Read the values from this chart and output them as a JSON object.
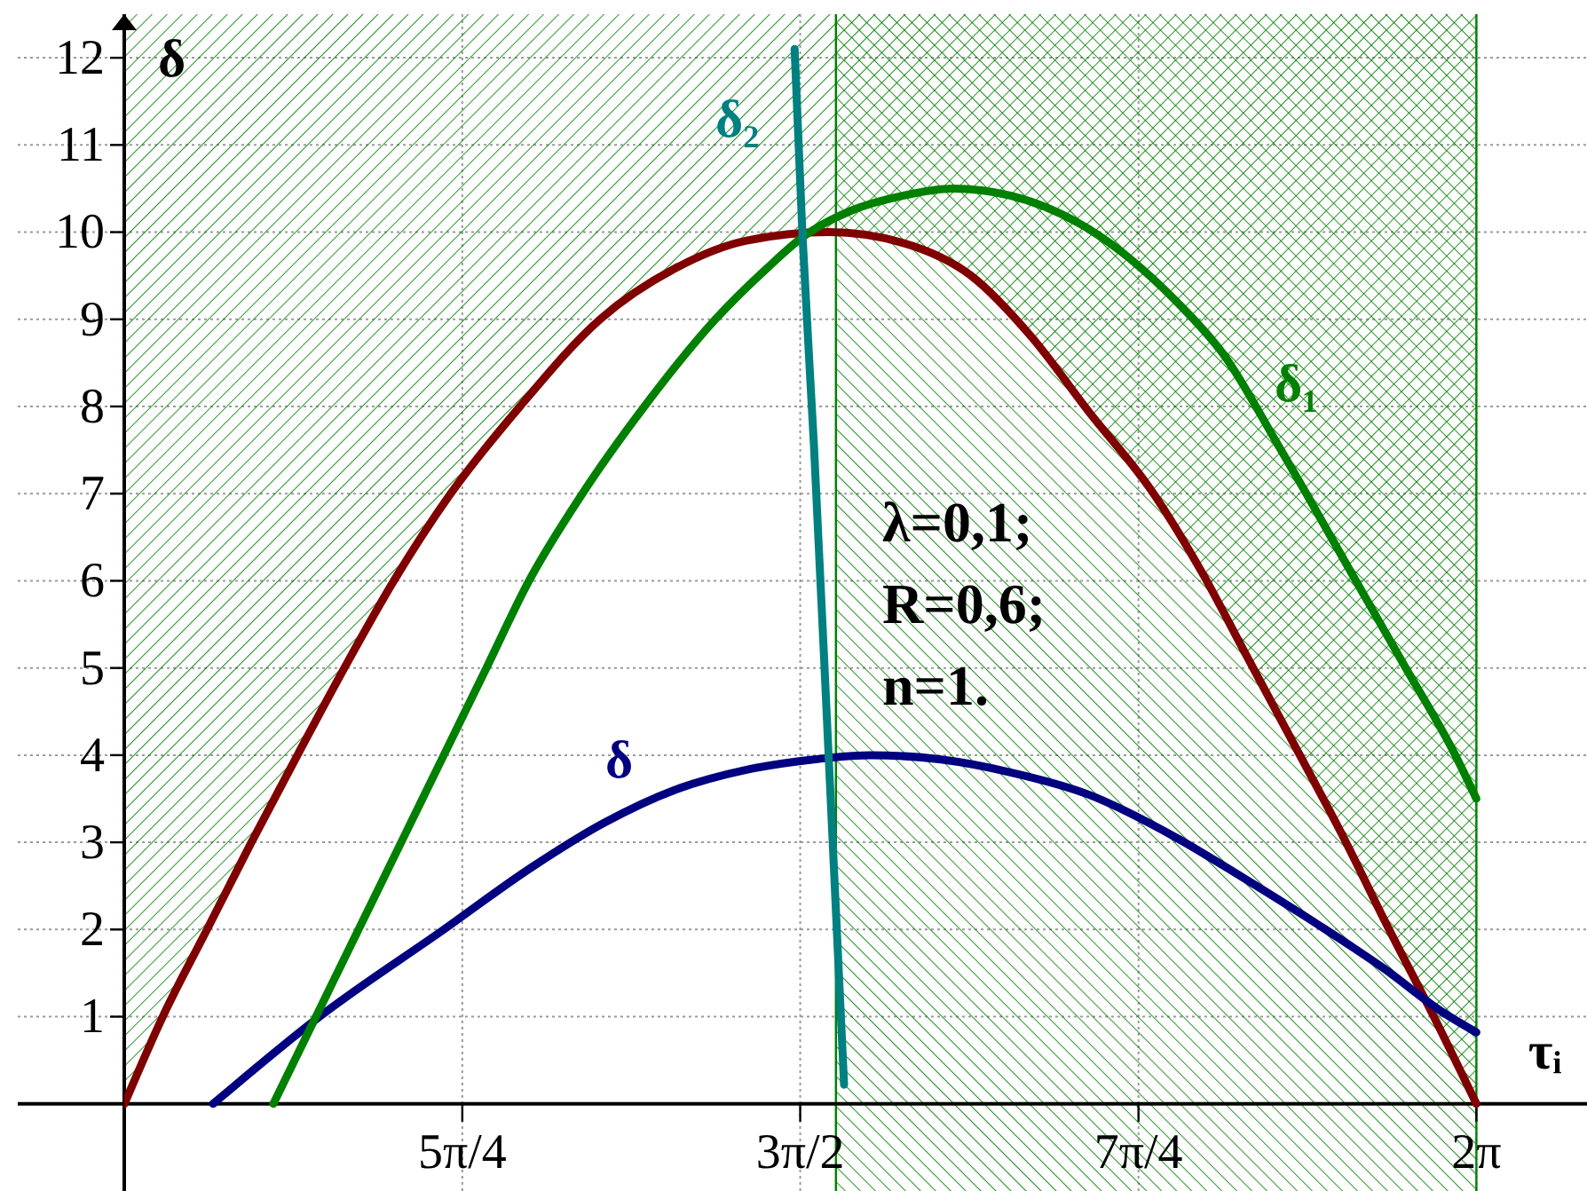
{
  "chart_data": {
    "type": "line",
    "xlabel": "τᵢ",
    "ylabel": "δ",
    "xlim": [
      3.1416,
      6.54
    ],
    "ylim": [
      -1,
      12.5
    ],
    "xticks": [
      {
        "value": 3.927,
        "label": "5π/4"
      },
      {
        "value": 4.712,
        "label": "3π/2"
      },
      {
        "value": 5.498,
        "label": "7π/4"
      },
      {
        "value": 6.283,
        "label": "2π"
      }
    ],
    "yticks": [
      1,
      2,
      3,
      4,
      5,
      6,
      7,
      8,
      9,
      10,
      11,
      12
    ],
    "grid": true,
    "bands": [
      {
        "axis": "x",
        "from": 4.795,
        "to": 6.283,
        "color": "#008000"
      }
    ],
    "series": [
      {
        "color": "#800000",
        "x": [
          3.142,
          3.231,
          3.334,
          3.437,
          3.544,
          3.653,
          3.768,
          3.9,
          4.061,
          4.247,
          4.42,
          4.585,
          4.779,
          4.948,
          5.109,
          5.249,
          5.381,
          5.533,
          5.645,
          5.748,
          5.851,
          5.975,
          6.07,
          6.181,
          6.283
        ],
        "values": [
          0,
          1,
          2,
          3,
          4,
          5,
          6,
          7,
          8,
          9,
          9.58,
          9.9,
          10,
          9.88,
          9.5,
          8.8,
          7.95,
          7,
          6.1,
          5.15,
          4.2,
          3.05,
          2.1,
          1.03,
          0
        ],
        "lower": [
          0,
          1,
          2,
          3,
          4,
          5,
          6,
          7,
          8,
          9,
          9.58,
          9.9,
          10,
          9.88,
          9.5,
          8.8,
          7.95,
          7,
          6.1,
          5.15,
          4.2,
          3.05,
          2.1,
          1.03,
          0
        ],
        "upper": [
          12.5,
          12.5,
          12.5,
          12.5,
          12.5,
          12.5,
          12.5,
          12.5,
          12.5,
          12.5,
          12.5,
          12.5,
          12.5,
          12.5,
          12.5,
          12.5,
          12.5,
          12.5,
          12.5,
          12.5,
          12.5,
          12.5,
          12.5,
          12.5,
          12.5
        ]
      },
      {
        "name": "δ",
        "color": "#000080",
        "x": [
          3.348,
          3.595,
          3.884,
          4.09,
          4.255,
          4.42,
          4.585,
          4.709,
          4.874,
          5.039,
          5.203,
          5.381,
          5.587,
          5.739,
          5.917,
          6.069,
          6.205,
          6.283
        ],
        "values": [
          0,
          1,
          2,
          2.72,
          3.22,
          3.6,
          3.83,
          3.93,
          4.0,
          3.95,
          3.8,
          3.55,
          3.05,
          2.6,
          2.05,
          1.55,
          1.05,
          0.82
        ]
      },
      {
        "name": "δ₁",
        "color": "#008000",
        "x": [
          3.488,
          3.587,
          3.686,
          3.785,
          3.884,
          3.983,
          4.082,
          4.206,
          4.35,
          4.515,
          4.638,
          4.717,
          4.832,
          4.952,
          5.067,
          5.2,
          5.381,
          5.587,
          5.698,
          5.822,
          5.888,
          6.003,
          6.119,
          6.234,
          6.283
        ],
        "values": [
          0,
          1,
          2,
          3,
          4,
          5,
          6,
          7,
          8,
          9,
          9.6,
          9.94,
          10.25,
          10.42,
          10.5,
          10.42,
          10.04,
          9.2,
          8.58,
          7.56,
          7,
          6,
          5,
          4,
          3.5
        ]
      },
      {
        "name": "δ₂",
        "color": "#008080",
        "x": [
          4.699,
          4.717,
          4.744,
          4.778,
          4.814
        ],
        "values": [
          12.1,
          10.0,
          7.55,
          4.0,
          0.22
        ]
      }
    ],
    "annotations": [
      "λ=0,1;",
      "R=0,6;",
      "n=1."
    ]
  }
}
